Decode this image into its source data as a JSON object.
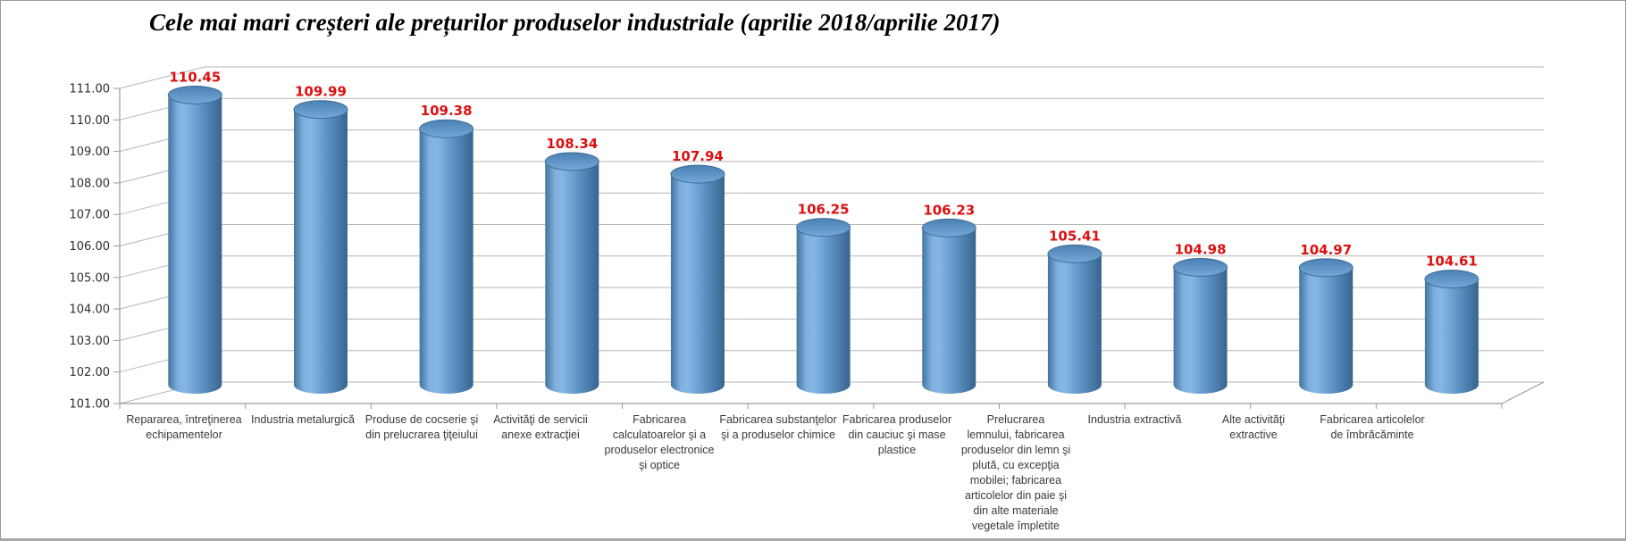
{
  "chart_data": {
    "type": "bar",
    "subtype": "3d-cylinder",
    "title": "Cele mai mari creșteri ale prețurilor produselor industriale (aprilie 2018/aprilie 2017)",
    "categories": [
      "Repararea, întreţinerea\nechipamentelor",
      "Industria metalurgică",
      "Produse de cocserie şi\ndin prelucrarea ţiţeiului",
      "Activităţi de servicii\nanexe extracţiei",
      "Fabricarea\ncalculatoarelor şi a\nproduselor electronice\nşi optice",
      "Fabricarea substanţelor\nşi a produselor chimice",
      "Fabricarea produselor\ndin cauciuc şi mase\nplastice",
      "Prelucrarea\nlemnului, fabricarea\nproduselor din lemn şi\nplută, cu excepţia\nmobilei; fabricarea\narticolelor din paie şi\ndin alte materiale\nvegetale împletite",
      "Industria extractivă",
      "Alte activităţi\nextractive",
      "Fabricarea articolelor\nde îmbrăcăminte"
    ],
    "values": [
      110.45,
      109.99,
      109.38,
      108.34,
      107.94,
      106.25,
      106.23,
      105.41,
      104.98,
      104.97,
      104.61
    ],
    "ylim": [
      101,
      111
    ],
    "ytick_step": 1,
    "ytick_decimals": 2,
    "grid": true,
    "legend": false,
    "colors": {
      "value_label": "#dd0f0f",
      "bar_body_gradient": [
        "#44749f",
        "#7fb0de",
        "#85b7e4",
        "#5f96c8",
        "#38648f"
      ],
      "bar_top_gradient": [
        "#4b80b2",
        "#74a9da"
      ],
      "bar_top_rim": "#3b6890",
      "gridline": "#b6b6b6",
      "axis": "#9a9a9a",
      "tick_label": "#2e2e2e",
      "category_label": "#3a3a3a"
    }
  }
}
